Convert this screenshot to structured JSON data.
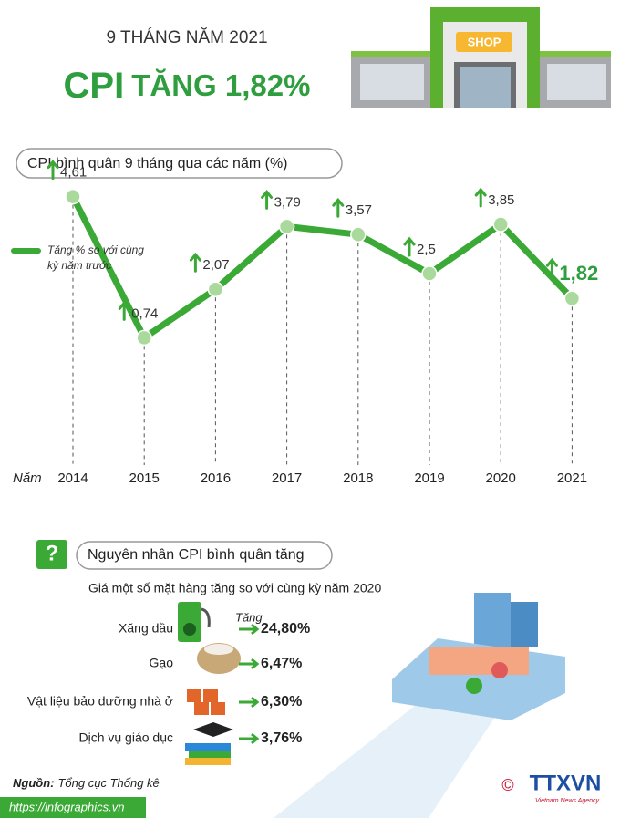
{
  "header": {
    "subtitle": "9 THÁNG NĂM 2021",
    "headline_main": "CPI",
    "headline_rest": "TĂNG 1,82%",
    "shop_sign": "SHOP"
  },
  "chart_data": {
    "type": "line",
    "title": "CPI bình quân 9 tháng qua các năm (%)",
    "x_label": "Năm",
    "categories": [
      "2014",
      "2015",
      "2016",
      "2017",
      "2018",
      "2019",
      "2020",
      "2021"
    ],
    "series": [
      {
        "name": "Tăng % so với cùng kỳ năm trước",
        "color": "#3aa935",
        "values": [
          4.61,
          0.74,
          2.07,
          3.79,
          3.57,
          2.5,
          3.85,
          1.82
        ],
        "value_labels": [
          "4,61",
          "0,74",
          "2,07",
          "3,79",
          "3,57",
          "2,5",
          "3,85",
          "1,82"
        ]
      }
    ],
    "ylim": [
      0,
      5
    ]
  },
  "causes": {
    "icon_text": "?",
    "title": "Nguyên nhân CPI bình quân tăng",
    "subtitle": "Giá một số mặt hàng tăng so với cùng kỳ năm 2020",
    "change_label": "Tăng",
    "items": [
      {
        "label": "Xăng dầu",
        "value": "24,80%"
      },
      {
        "label": "Gạo",
        "value": "6,47%"
      },
      {
        "label": "Vật liệu bảo dưỡng nhà ở",
        "value": "6,30%"
      },
      {
        "label": "Dịch vụ giáo dục",
        "value": "3,76%"
      }
    ]
  },
  "footer": {
    "source_label": "Nguồn:",
    "source": "Tổng cục Thống kê",
    "url": "https://infographics.vn",
    "copyright": "©",
    "agency": "TTXVN",
    "agency_en": "Vietnam News Agency"
  }
}
